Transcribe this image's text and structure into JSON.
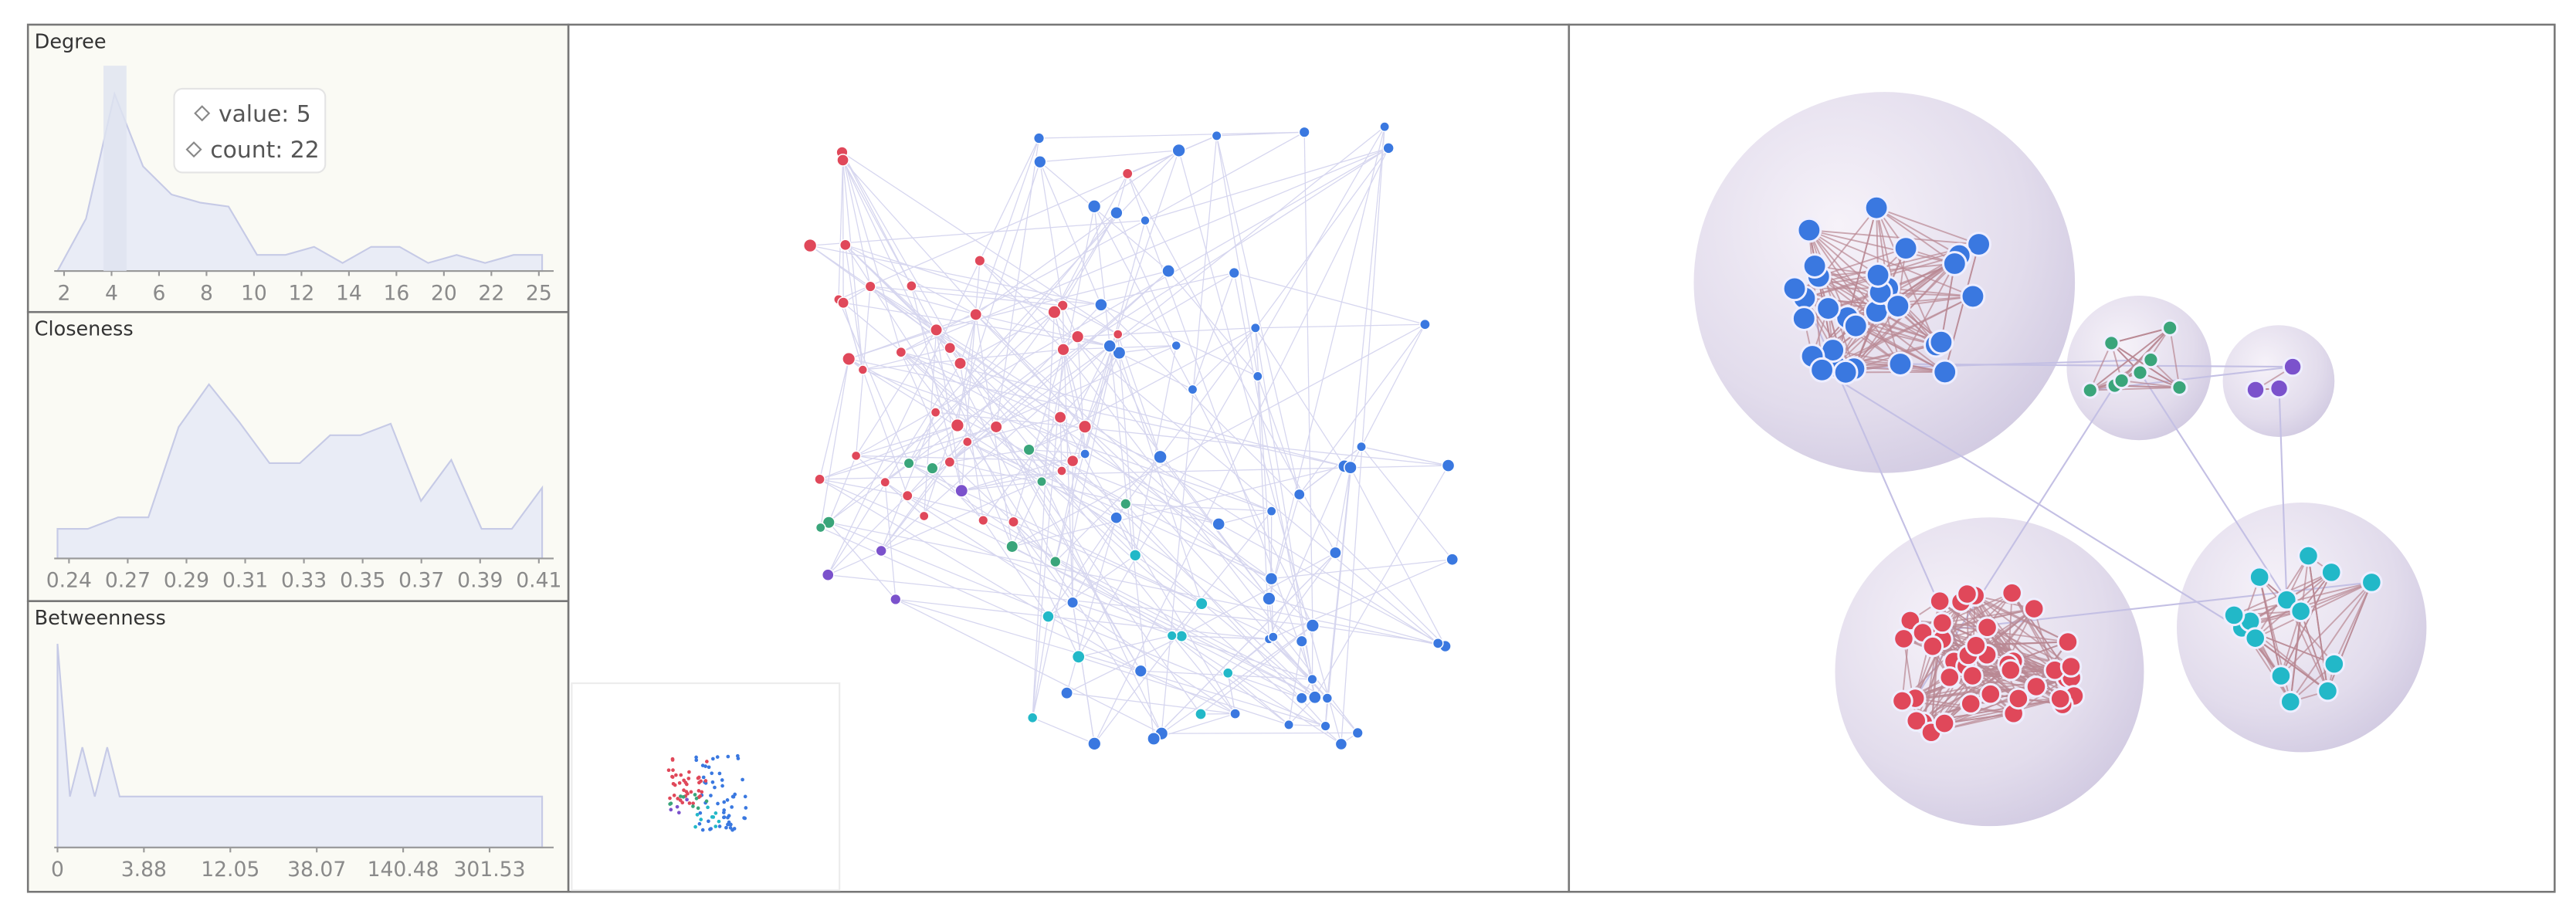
{
  "panels": [
    {
      "title": "Degree",
      "xticks": [
        2,
        4,
        6,
        8,
        10,
        12,
        14,
        16,
        20,
        22,
        25
      ],
      "values": [
        0,
        6.5,
        22,
        13,
        9.5,
        8.5,
        8,
        2,
        2,
        3,
        1,
        3,
        3,
        1,
        2,
        1,
        2,
        2
      ],
      "ylim": [
        0,
        25.5
      ],
      "tooltip": [
        "value: 5",
        "count: 22"
      ]
    },
    {
      "title": "Closeness",
      "xticks": [
        0.24,
        0.27,
        0.29,
        0.31,
        0.33,
        0.35,
        0.37,
        0.39,
        0.41
      ],
      "values": [
        18,
        18,
        25,
        25,
        80,
        106,
        83,
        58,
        58,
        75,
        75,
        82,
        35,
        60,
        18,
        18,
        43
      ],
      "ylim": [
        0,
        125
      ]
    },
    {
      "title": "Betweenness",
      "xticks": [
        0,
        3.88,
        12.05,
        38.07,
        140.48,
        301.53
      ],
      "values": [
        124,
        31,
        61,
        31,
        61,
        31,
        31,
        31,
        31,
        31,
        31,
        31,
        31,
        31,
        31,
        31,
        31,
        31,
        31,
        31,
        31,
        31,
        31,
        31,
        31,
        31,
        31,
        31,
        31,
        31,
        31,
        31,
        31,
        31,
        31,
        31,
        31,
        31,
        31,
        31
      ],
      "ylim": [
        0,
        125
      ]
    }
  ],
  "network": {
    "cluster_colors": [
      "#3a78e0",
      "#e0485a",
      "#3aa57a",
      "#22b8c8",
      "#7b52cc"
    ]
  }
}
